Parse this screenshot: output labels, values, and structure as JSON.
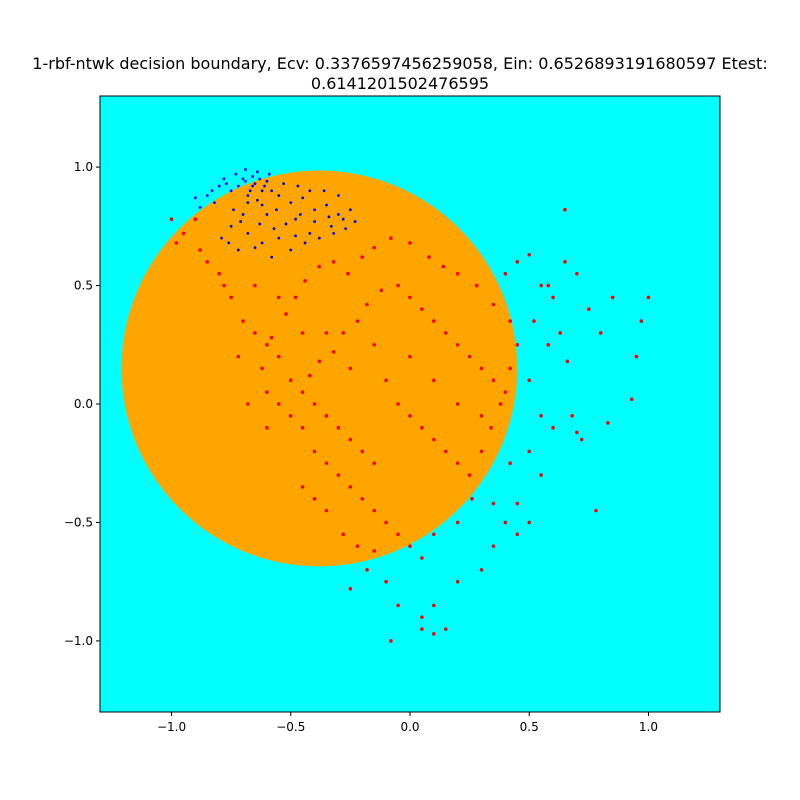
{
  "chart_data": {
    "type": "scatter",
    "title_line1": "1-rbf-ntwk decision boundary, Ecv: 0.3376597456259058, Ein: 0.6526893191680597 Etest:",
    "title_line2": "0.6141201502476595",
    "xlim": [
      -1.3,
      1.3
    ],
    "ylim": [
      -1.3,
      1.3
    ],
    "xticks": [
      -1.0,
      -0.5,
      0.0,
      0.5,
      1.0
    ],
    "xtick_labels": [
      "−1.0",
      "−0.5",
      "0.0",
      "0.5",
      "1.0"
    ],
    "yticks": [
      -1.0,
      -0.5,
      0.0,
      0.5,
      1.0
    ],
    "ytick_labels": [
      "−1.0",
      "−0.5",
      "0.0",
      "0.5",
      "1.0"
    ],
    "grid": false,
    "colors": {
      "background_region": "#00ffff",
      "boundary_region": "#ffa500",
      "class_neg": "#0000ff",
      "class_pos": "#ff0000"
    },
    "decision_region": {
      "shape": "circle",
      "center": [
        -0.38,
        0.15
      ],
      "radius": 0.83
    },
    "series": [
      {
        "class": "blue",
        "color": "#0000ff",
        "points": [
          [
            -0.65,
            0.93
          ],
          [
            -0.7,
            0.95
          ],
          [
            -0.62,
            0.9
          ],
          [
            -0.68,
            0.88
          ],
          [
            -0.72,
            0.92
          ],
          [
            -0.66,
            0.96
          ],
          [
            -0.6,
            0.94
          ],
          [
            -0.75,
            0.9
          ],
          [
            -0.8,
            0.92
          ],
          [
            -0.78,
            0.95
          ],
          [
            -0.64,
            0.86
          ],
          [
            -0.58,
            0.9
          ],
          [
            -0.55,
            0.88
          ],
          [
            -0.5,
            0.85
          ],
          [
            -0.45,
            0.87
          ],
          [
            -0.4,
            0.82
          ],
          [
            -0.35,
            0.84
          ],
          [
            -0.3,
            0.8
          ],
          [
            -0.33,
            0.75
          ],
          [
            -0.42,
            0.72
          ],
          [
            -0.48,
            0.78
          ],
          [
            -0.52,
            0.76
          ],
          [
            -0.6,
            0.8
          ],
          [
            -0.7,
            0.8
          ],
          [
            -0.75,
            0.75
          ],
          [
            -0.82,
            0.85
          ],
          [
            -0.85,
            0.88
          ],
          [
            -0.88,
            0.83
          ],
          [
            -0.79,
            0.7
          ],
          [
            -0.68,
            0.72
          ],
          [
            -0.62,
            0.68
          ],
          [
            -0.55,
            0.7
          ],
          [
            -0.5,
            0.65
          ],
          [
            -0.58,
            0.62
          ],
          [
            -0.65,
            0.66
          ],
          [
            -0.72,
            0.65
          ],
          [
            -0.76,
            0.68
          ],
          [
            -0.44,
            0.68
          ],
          [
            -0.38,
            0.7
          ],
          [
            -0.32,
            0.72
          ],
          [
            -0.28,
            0.78
          ],
          [
            -0.25,
            0.82
          ],
          [
            -0.3,
            0.88
          ],
          [
            -0.36,
            0.9
          ],
          [
            -0.42,
            0.9
          ],
          [
            -0.47,
            0.92
          ],
          [
            -0.53,
            0.93
          ],
          [
            -0.59,
            0.97
          ],
          [
            -0.64,
            0.98
          ],
          [
            -0.69,
            0.99
          ],
          [
            -0.73,
            0.97
          ],
          [
            -0.77,
            0.93
          ],
          [
            -0.83,
            0.9
          ],
          [
            -0.9,
            0.87
          ],
          [
            -0.56,
            0.82
          ],
          [
            -0.62,
            0.84
          ],
          [
            -0.68,
            0.85
          ],
          [
            -0.74,
            0.82
          ],
          [
            -0.71,
            0.77
          ],
          [
            -0.63,
            0.76
          ],
          [
            -0.57,
            0.74
          ],
          [
            -0.46,
            0.8
          ],
          [
            -0.4,
            0.77
          ],
          [
            -0.34,
            0.79
          ],
          [
            -0.27,
            0.74
          ],
          [
            -0.23,
            0.77
          ],
          [
            -0.48,
            0.71
          ],
          [
            -0.66,
            0.92
          ],
          [
            -0.67,
            0.9
          ],
          [
            -0.63,
            0.95
          ],
          [
            -0.61,
            0.92
          ],
          [
            -0.69,
            0.94
          ]
        ]
      },
      {
        "class": "red",
        "color": "#ff0000",
        "points": [
          [
            -0.5,
            0.1
          ],
          [
            -0.45,
            0.05
          ],
          [
            -0.4,
            0.0
          ],
          [
            -0.35,
            -0.05
          ],
          [
            -0.3,
            -0.1
          ],
          [
            -0.25,
            -0.15
          ],
          [
            -0.2,
            -0.2
          ],
          [
            -0.15,
            -0.25
          ],
          [
            -0.55,
            0.2
          ],
          [
            -0.6,
            0.25
          ],
          [
            -0.65,
            0.3
          ],
          [
            -0.7,
            0.35
          ],
          [
            -0.75,
            0.45
          ],
          [
            -0.8,
            0.55
          ],
          [
            -0.85,
            0.6
          ],
          [
            -0.78,
            0.5
          ],
          [
            -0.42,
            0.12
          ],
          [
            -0.38,
            0.18
          ],
          [
            -0.32,
            0.22
          ],
          [
            -0.28,
            0.3
          ],
          [
            -0.22,
            0.35
          ],
          [
            -0.18,
            0.42
          ],
          [
            -0.12,
            0.48
          ],
          [
            -0.05,
            0.5
          ],
          [
            0.0,
            0.45
          ],
          [
            0.05,
            0.4
          ],
          [
            0.1,
            0.35
          ],
          [
            0.15,
            0.3
          ],
          [
            0.2,
            0.25
          ],
          [
            0.25,
            0.2
          ],
          [
            0.3,
            0.15
          ],
          [
            0.35,
            0.1
          ],
          [
            0.4,
            0.05
          ],
          [
            -0.1,
            0.1
          ],
          [
            -0.05,
            0.0
          ],
          [
            0.0,
            -0.05
          ],
          [
            0.05,
            -0.1
          ],
          [
            0.1,
            -0.15
          ],
          [
            0.15,
            -0.2
          ],
          [
            0.2,
            -0.25
          ],
          [
            0.25,
            -0.3
          ],
          [
            -0.3,
            -0.3
          ],
          [
            -0.25,
            -0.35
          ],
          [
            -0.2,
            -0.4
          ],
          [
            -0.15,
            -0.45
          ],
          [
            -0.1,
            -0.5
          ],
          [
            -0.05,
            -0.55
          ],
          [
            0.0,
            -0.6
          ],
          [
            0.05,
            -0.65
          ],
          [
            -0.4,
            -0.2
          ],
          [
            -0.35,
            -0.25
          ],
          [
            -0.45,
            -0.1
          ],
          [
            -0.5,
            -0.05
          ],
          [
            -0.55,
            0.0
          ],
          [
            -0.6,
            0.05
          ],
          [
            -0.62,
            0.15
          ],
          [
            -0.58,
            0.28
          ],
          [
            -0.52,
            0.38
          ],
          [
            -0.48,
            0.45
          ],
          [
            -0.44,
            0.52
          ],
          [
            -0.38,
            0.58
          ],
          [
            -0.32,
            0.6
          ],
          [
            -0.26,
            0.55
          ],
          [
            -0.2,
            0.62
          ],
          [
            -0.15,
            0.66
          ],
          [
            -0.08,
            0.7
          ],
          [
            0.0,
            0.68
          ],
          [
            0.08,
            0.62
          ],
          [
            0.14,
            0.58
          ],
          [
            0.2,
            0.55
          ],
          [
            0.28,
            0.5
          ],
          [
            0.35,
            0.42
          ],
          [
            0.42,
            0.35
          ],
          [
            0.45,
            0.25
          ],
          [
            0.42,
            0.15
          ],
          [
            0.38,
            0.0
          ],
          [
            0.34,
            -0.1
          ],
          [
            0.3,
            -0.2
          ],
          [
            0.26,
            -0.4
          ],
          [
            0.2,
            -0.5
          ],
          [
            0.1,
            -0.55
          ],
          [
            0.55,
            0.5
          ],
          [
            0.6,
            0.45
          ],
          [
            0.65,
            0.6
          ],
          [
            0.7,
            0.55
          ],
          [
            0.75,
            0.4
          ],
          [
            0.8,
            0.3
          ],
          [
            0.85,
            0.45
          ],
          [
            0.95,
            0.2
          ],
          [
            1.0,
            0.45
          ],
          [
            0.97,
            0.35
          ],
          [
            0.93,
            0.02
          ],
          [
            0.83,
            -0.08
          ],
          [
            0.78,
            -0.45
          ],
          [
            0.6,
            -0.1
          ],
          [
            0.55,
            -0.05
          ],
          [
            0.5,
            0.1
          ],
          [
            0.55,
            -0.3
          ],
          [
            0.5,
            -0.5
          ],
          [
            0.45,
            -0.55
          ],
          [
            0.35,
            -0.6
          ],
          [
            0.3,
            -0.7
          ],
          [
            0.2,
            -0.75
          ],
          [
            0.1,
            -0.85
          ],
          [
            0.05,
            -0.9
          ],
          [
            -0.05,
            -0.85
          ],
          [
            -0.1,
            -0.75
          ],
          [
            -0.18,
            -0.7
          ],
          [
            -0.25,
            -0.78
          ],
          [
            0.15,
            -0.95
          ],
          [
            0.1,
            -0.97
          ],
          [
            -0.08,
            -1.0
          ],
          [
            0.05,
            -0.95
          ],
          [
            -1.0,
            0.78
          ],
          [
            -0.9,
            0.78
          ],
          [
            -0.95,
            0.72
          ],
          [
            -0.98,
            0.68
          ],
          [
            -0.88,
            0.65
          ],
          [
            -0.6,
            -0.1
          ],
          [
            -0.68,
            0.0
          ],
          [
            -0.72,
            0.2
          ],
          [
            -0.45,
            -0.35
          ],
          [
            -0.4,
            -0.4
          ],
          [
            -0.35,
            -0.45
          ],
          [
            -0.28,
            -0.55
          ],
          [
            -0.22,
            -0.6
          ],
          [
            -0.15,
            -0.62
          ],
          [
            0.0,
            0.2
          ],
          [
            0.1,
            0.1
          ],
          [
            0.2,
            0.0
          ],
          [
            0.3,
            -0.05
          ],
          [
            -0.15,
            0.25
          ],
          [
            -0.25,
            0.15
          ],
          [
            -0.35,
            0.3
          ],
          [
            -0.45,
            0.3
          ],
          [
            -0.55,
            0.45
          ],
          [
            -0.65,
            0.5
          ],
          [
            0.65,
            0.82
          ],
          [
            0.58,
            0.5
          ],
          [
            0.5,
            0.63
          ],
          [
            0.45,
            0.6
          ],
          [
            0.4,
            0.55
          ],
          [
            0.52,
            0.35
          ],
          [
            0.58,
            0.25
          ],
          [
            0.63,
            0.3
          ],
          [
            0.66,
            0.18
          ],
          [
            0.7,
            -0.12
          ],
          [
            0.72,
            -0.15
          ],
          [
            0.68,
            -0.05
          ],
          [
            0.5,
            -0.2
          ],
          [
            0.42,
            -0.25
          ],
          [
            0.45,
            -0.42
          ],
          [
            0.4,
            -0.5
          ],
          [
            0.35,
            -0.42
          ]
        ]
      }
    ]
  }
}
